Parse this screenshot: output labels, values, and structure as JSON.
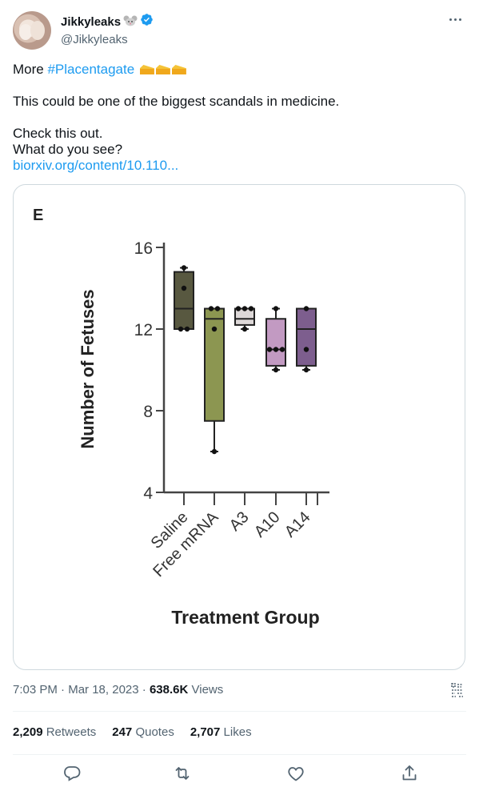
{
  "author": {
    "display_name": "Jikkyleaks",
    "handle": "@Jikkyleaks",
    "name_emoji": "mouse-face",
    "verified": true
  },
  "tweet": {
    "line1_prefix": "More ",
    "hashtag": "#Placentagate",
    "line1_emoji": "cheese-wedge x3",
    "line2": "This could be one of the biggest scandals in medicine.",
    "line3": "Check this out.",
    "line4": "What do you see?",
    "link": "biorxiv.org/content/10.110..."
  },
  "meta": {
    "time": "7:03 PM",
    "dot1": "·",
    "date": "Mar 18, 2023",
    "dot2": "·",
    "views_count": "638.6K",
    "views_label": "Views"
  },
  "stats": {
    "retweets_count": "2,209",
    "retweets_label": "Retweets",
    "quotes_count": "247",
    "quotes_label": "Quotes",
    "likes_count": "2,707",
    "likes_label": "Likes"
  },
  "colors": {
    "link": "#1d9bf0",
    "verified": "#1d9bf0",
    "secondary_text": "#536471"
  },
  "chart_data": {
    "type": "box",
    "panel_label": "E",
    "title": "",
    "xlabel": "Treatment Group",
    "ylabel": "Number of Fetuses",
    "ylim": [
      4,
      16
    ],
    "yticks": [
      4,
      8,
      12,
      16
    ],
    "categories": [
      "Saline",
      "Free mRNA",
      "A3",
      "A10",
      "A14"
    ],
    "boxes": [
      {
        "name": "Saline",
        "min": 12,
        "q1": 12,
        "median": 13,
        "q3": 14.8,
        "max": 15,
        "points": [
          12,
          12,
          14,
          15
        ],
        "color": "#585840"
      },
      {
        "name": "Free mRNA",
        "min": 6,
        "q1": 7.5,
        "median": 12.5,
        "q3": 13,
        "max": 13,
        "points": [
          6,
          12,
          13,
          13
        ],
        "color": "#8c9651"
      },
      {
        "name": "A3",
        "min": 12,
        "q1": 12.2,
        "median": 12.5,
        "q3": 13,
        "max": 13,
        "points": [
          12,
          13,
          13,
          13
        ],
        "color": "#ddd8d8"
      },
      {
        "name": "A10",
        "min": 10,
        "q1": 10.2,
        "median": 11,
        "q3": 12.5,
        "max": 13,
        "points": [
          10,
          11,
          11,
          11,
          13
        ],
        "color": "#c29ac2"
      },
      {
        "name": "A14",
        "min": 10,
        "q1": 10.2,
        "median": 12,
        "q3": 13,
        "max": 13,
        "points": [
          10,
          11,
          13
        ],
        "color": "#7d5e8e"
      }
    ]
  }
}
